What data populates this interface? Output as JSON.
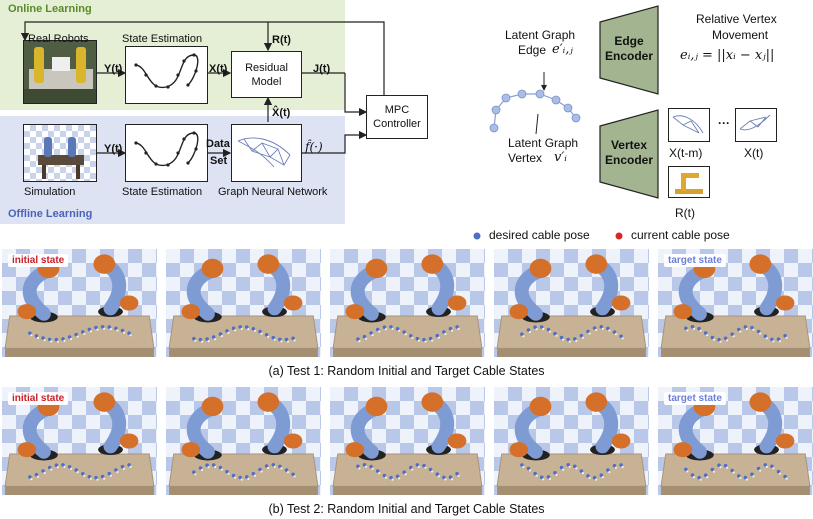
{
  "online": {
    "title": "Online Learning",
    "real_robots": "Real Robots",
    "state_estimation": "State Estimation",
    "y_t": "Y(t)",
    "x_t": "X(t)",
    "r_t": "R(t)",
    "j_t": "J(t)",
    "residual_model": [
      "Residual",
      "Model"
    ],
    "x_hat": "X̂(t)"
  },
  "mpc": [
    "MPC",
    "Controller"
  ],
  "offline": {
    "title": "Offline Learning",
    "simulation": "Simulation",
    "state_estimation": "State Estimation",
    "y_t": "Y(t)",
    "data_set": [
      "Data",
      "Set"
    ],
    "f_hat": "f̂(·)",
    "gnn": "Graph Neural Network"
  },
  "graph": {
    "edge_label": [
      "Latent Graph",
      "Edge"
    ],
    "edge_symbol": "e′ᵢ,ⱼ",
    "vertex_label": [
      "Latent Graph",
      "Vertex"
    ],
    "vertex_symbol": "v′ᵢ"
  },
  "edge_encoder": {
    "label": [
      "Edge",
      "Encoder"
    ],
    "right_title": [
      "Relative Vertex",
      "Movement"
    ],
    "formula": "eᵢ,ⱼ = ||xᵢ − xⱼ||"
  },
  "vertex_encoder": {
    "label": [
      "Vertex",
      "Encoder"
    ],
    "x_tm": "X(t-m)",
    "dots": "···",
    "x_t": "X(t)",
    "r_t": "R(t)"
  },
  "legend": {
    "desired": "desired cable pose",
    "current": "current cable pose",
    "desired_color": "#4f6fc4",
    "current_color": "#d9262a"
  },
  "test1": {
    "initial_tag": "initial state",
    "target_tag": "target state",
    "caption": "(a) Test 1: Random Initial and Target Cable States"
  },
  "test2": {
    "initial_tag": "initial state",
    "target_tag": "target state",
    "caption": "(b) Test 2: Random Initial and Target Cable States"
  },
  "colors": {
    "online_band": "#e4efd6",
    "offline_band": "#dde3f2",
    "online_title": "#5a8a2a",
    "offline_title": "#4a63b8",
    "encoder": "#a3b590",
    "initial_tag": "#c8202a",
    "target_tag": "#6e7fd8"
  }
}
